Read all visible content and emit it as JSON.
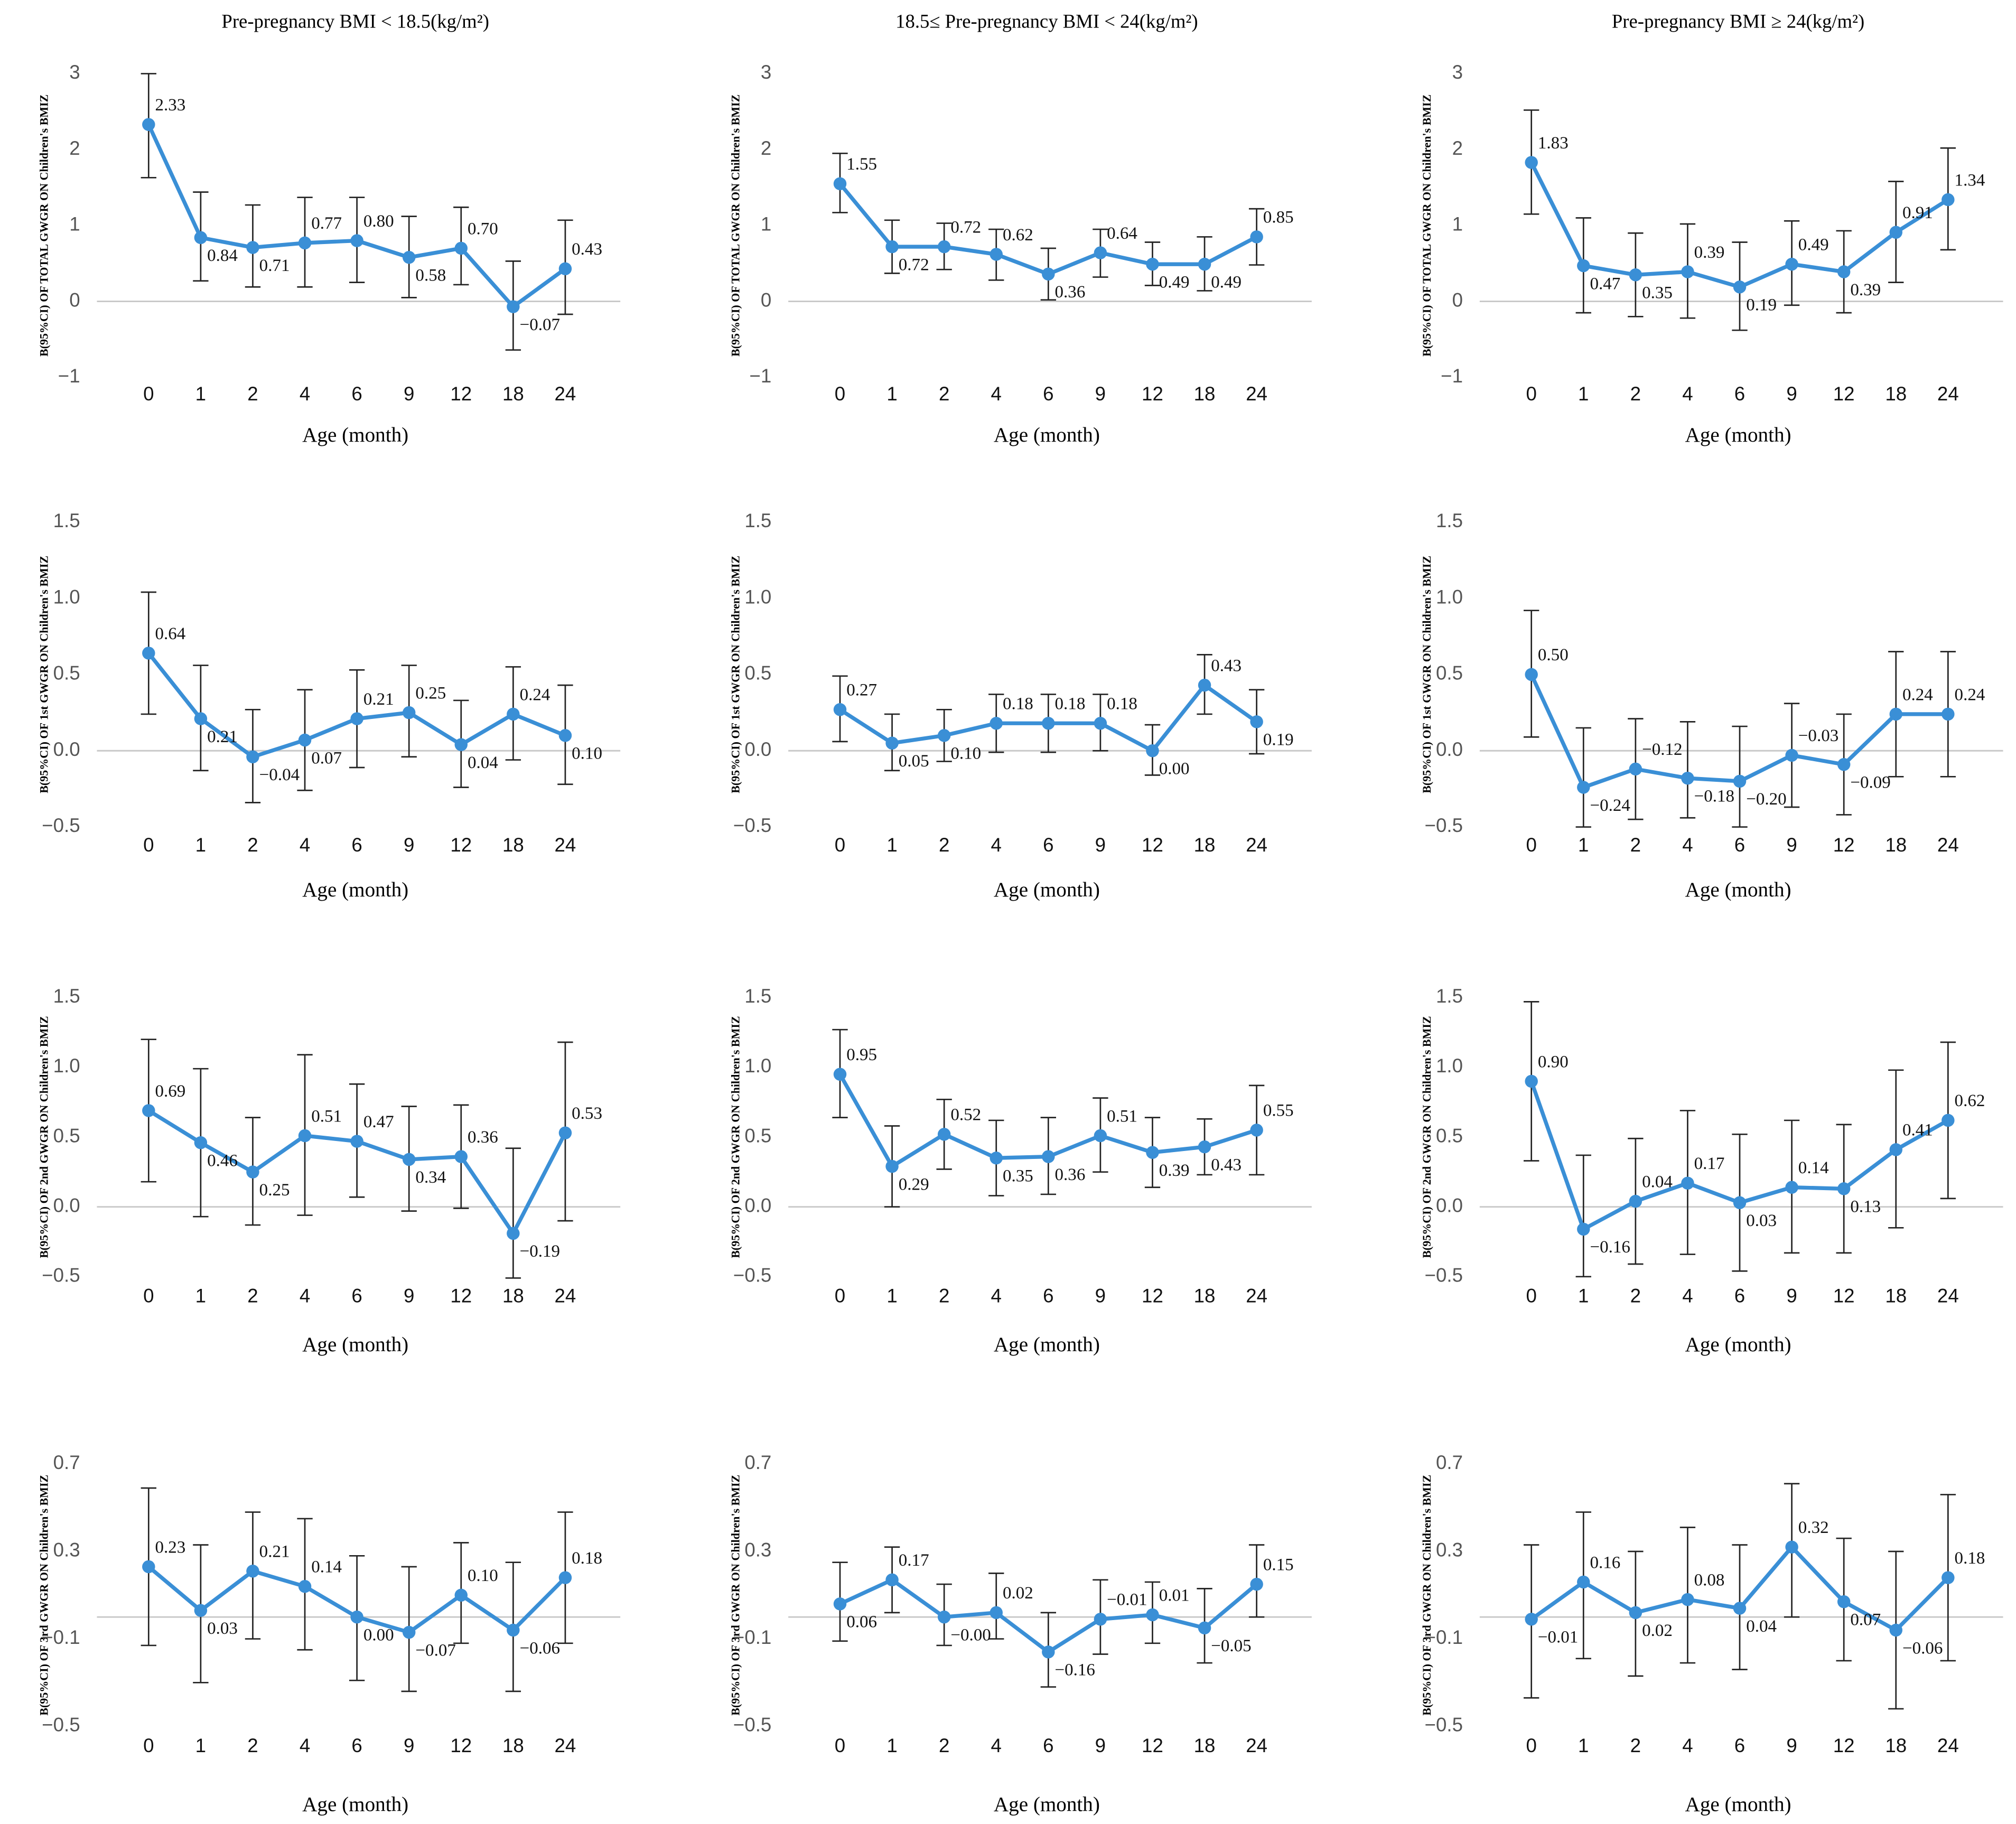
{
  "chart_data": [
    {
      "type": "line",
      "title": "Pre-pregnancy BMI < 18.5(kg/m²)",
      "ylabel": "B(95%CI) OF TOTAL GWGR ON Children's BMIZ",
      "xlabel": "Age (month)",
      "categories": [
        "0",
        "1",
        "2",
        "4",
        "6",
        "9",
        "12",
        "18",
        "24"
      ],
      "values": [
        2.33,
        0.84,
        0.71,
        0.77,
        0.8,
        0.58,
        0.7,
        -0.07,
        0.43
      ],
      "value_labels": [
        "2.33",
        "0.84",
        "0.71",
        "0.77",
        "0.80",
        "0.58",
        "0.70",
        "−0.07",
        "0.43"
      ],
      "ci_lower": [
        1.63,
        0.27,
        0.19,
        0.19,
        0.25,
        0.05,
        0.22,
        -0.64,
        -0.17
      ],
      "ci_upper": [
        3.0,
        1.44,
        1.27,
        1.37,
        1.37,
        1.12,
        1.24,
        0.53,
        1.07
      ],
      "color": "#3a8fd6",
      "ylim": [
        -1,
        3
      ],
      "yticks": [
        {
          "value": -1,
          "label": "−1"
        },
        0,
        1,
        2,
        3
      ]
    },
    {
      "type": "line",
      "title": "18.5≤ Pre-pregnancy BMI < 24(kg/m²)",
      "ylabel": "B(95%CI) OF TOTAL GWGR ON Children's BMIZ",
      "xlabel": "Age (month)",
      "categories": [
        "0",
        "1",
        "2",
        "4",
        "6",
        "9",
        "12",
        "18",
        "24"
      ],
      "values": [
        1.55,
        0.72,
        0.72,
        0.62,
        0.36,
        0.64,
        0.49,
        0.49,
        0.85
      ],
      "value_labels": [
        "1.55",
        "0.72",
        "0.72",
        "0.62",
        "0.36",
        "0.64",
        "0.49",
        "0.49",
        "0.85"
      ],
      "ci_lower": [
        1.17,
        0.37,
        0.42,
        0.28,
        0.02,
        0.32,
        0.21,
        0.14,
        0.48
      ],
      "ci_upper": [
        1.95,
        1.07,
        1.03,
        0.95,
        0.7,
        0.95,
        0.78,
        0.85,
        1.22
      ],
      "color": "#3a8fd6",
      "ylim": [
        -1,
        3
      ],
      "yticks": [
        {
          "value": -1,
          "label": "−1"
        },
        0,
        1,
        2,
        3
      ]
    },
    {
      "type": "line",
      "title": "Pre-pregnancy BMI ≥ 24(kg/m²)",
      "ylabel": "B(95%CI) OF TOTAL GWGR ON Children's BMIZ",
      "xlabel": "Age (month)",
      "categories": [
        "0",
        "1",
        "2",
        "4",
        "6",
        "9",
        "12",
        "18",
        "24"
      ],
      "values": [
        1.83,
        0.47,
        0.35,
        0.39,
        0.19,
        0.49,
        0.39,
        0.91,
        1.34
      ],
      "value_labels": [
        "1.83",
        "0.47",
        "0.35",
        "0.39",
        "0.19",
        "0.49",
        "0.39",
        "0.91",
        "1.34"
      ],
      "ci_lower": [
        1.15,
        -0.15,
        -0.2,
        -0.22,
        -0.38,
        -0.05,
        -0.15,
        0.25,
        0.68
      ],
      "ci_upper": [
        2.52,
        1.1,
        0.9,
        1.02,
        0.78,
        1.06,
        0.93,
        1.58,
        2.02
      ],
      "color": "#3a8fd6",
      "ylim": [
        -1,
        3
      ],
      "yticks": [
        {
          "value": -1,
          "label": "−1"
        },
        0,
        1,
        2,
        3
      ]
    },
    {
      "type": "line",
      "ylabel": "B(95%CI) OF 1st GWGR ON Children's BMIZ",
      "xlabel": "Age (month)",
      "categories": [
        "0",
        "1",
        "2",
        "4",
        "6",
        "9",
        "12",
        "18",
        "24"
      ],
      "values": [
        0.64,
        0.21,
        -0.04,
        0.07,
        0.21,
        0.25,
        0.04,
        0.24,
        0.1
      ],
      "value_labels": [
        "0.64",
        "0.21",
        "−0.04",
        "0.07",
        "0.21",
        "0.25",
        "0.04",
        "0.24",
        "0.10"
      ],
      "ci_lower": [
        0.24,
        -0.13,
        -0.34,
        -0.26,
        -0.11,
        -0.04,
        -0.24,
        -0.06,
        -0.22
      ],
      "ci_upper": [
        1.04,
        0.56,
        0.27,
        0.4,
        0.53,
        0.56,
        0.33,
        0.55,
        0.43
      ],
      "color": "#3a8fd6",
      "ylim": [
        -0.5,
        1.5
      ],
      "yticks": [
        {
          "value": -0.5,
          "label": "−0.5"
        },
        {
          "value": 0,
          "label": "0.0"
        },
        0.5,
        {
          "value": 1,
          "label": "1.0"
        },
        1.5
      ]
    },
    {
      "type": "line",
      "ylabel": "B(95%CI) OF 1st GWGR ON Children's BMIZ",
      "xlabel": "Age (month)",
      "categories": [
        "0",
        "1",
        "2",
        "4",
        "6",
        "9",
        "12",
        "18",
        "24"
      ],
      "values": [
        0.27,
        0.05,
        0.1,
        0.18,
        0.18,
        0.18,
        0.0,
        0.43,
        0.19
      ],
      "value_labels": [
        "0.27",
        "0.05",
        "0.10",
        "0.18",
        "0.18",
        "0.18",
        "0.00",
        "0.43",
        "0.19"
      ],
      "ci_lower": [
        0.06,
        -0.13,
        -0.07,
        -0.01,
        -0.01,
        0.0,
        -0.16,
        0.24,
        -0.02
      ],
      "ci_upper": [
        0.49,
        0.24,
        0.27,
        0.37,
        0.37,
        0.37,
        0.17,
        0.63,
        0.4
      ],
      "color": "#3a8fd6",
      "ylim": [
        -0.5,
        1.5
      ],
      "yticks": [
        {
          "value": -0.5,
          "label": "−0.5"
        },
        {
          "value": 0,
          "label": "0.0"
        },
        0.5,
        {
          "value": 1,
          "label": "1.0"
        },
        1.5
      ]
    },
    {
      "type": "line",
      "ylabel": "B(95%CI) OF 1st GWGR ON Children's BMIZ",
      "xlabel": "Age (month)",
      "categories": [
        "0",
        "1",
        "2",
        "4",
        "6",
        "9",
        "12",
        "18",
        "24"
      ],
      "values": [
        0.5,
        -0.24,
        -0.12,
        -0.18,
        -0.2,
        -0.03,
        -0.09,
        0.24,
        0.24
      ],
      "value_labels": [
        "0.50",
        "−0.24",
        "−0.12",
        "−0.18",
        "−0.20",
        "−0.03",
        "−0.09",
        "0.24",
        "0.24"
      ],
      "ci_lower": [
        0.09,
        -0.5,
        -0.45,
        -0.44,
        -0.5,
        -0.37,
        -0.42,
        -0.17,
        -0.17
      ],
      "ci_upper": [
        0.92,
        0.15,
        0.21,
        0.19,
        0.16,
        0.31,
        0.24,
        0.65,
        0.65
      ],
      "color": "#3a8fd6",
      "ylim": [
        -0.5,
        1.5
      ],
      "yticks": [
        {
          "value": -0.5,
          "label": "−0.5"
        },
        {
          "value": 0,
          "label": "0.0"
        },
        0.5,
        {
          "value": 1,
          "label": "1.0"
        },
        1.5
      ]
    },
    {
      "type": "line",
      "ylabel": "B(95%CI) OF 2nd GWGR ON Children's BMIZ",
      "xlabel": "Age (month)",
      "categories": [
        "0",
        "1",
        "2",
        "4",
        "6",
        "9",
        "12",
        "18",
        "24"
      ],
      "values": [
        0.69,
        0.46,
        0.25,
        0.51,
        0.47,
        0.34,
        0.36,
        -0.19,
        0.53
      ],
      "value_labels": [
        "0.69",
        "0.46",
        "0.25",
        "0.51",
        "0.47",
        "0.34",
        "0.36",
        "−0.19",
        "0.53"
      ],
      "ci_lower": [
        0.18,
        -0.07,
        -0.13,
        -0.06,
        0.07,
        -0.03,
        -0.01,
        -0.51,
        -0.1
      ],
      "ci_upper": [
        1.2,
        0.99,
        0.64,
        1.09,
        0.88,
        0.72,
        0.73,
        0.42,
        1.18
      ],
      "color": "#3a8fd6",
      "ylim": [
        -0.5,
        1.5
      ],
      "yticks": [
        {
          "value": -0.5,
          "label": "−0.5"
        },
        {
          "value": 0,
          "label": "0.0"
        },
        0.5,
        {
          "value": 1,
          "label": "1.0"
        },
        1.5
      ]
    },
    {
      "type": "line",
      "ylabel": "B(95%CI) OF 2nd GWGR ON Children's BMIZ",
      "xlabel": "Age (month)",
      "categories": [
        "0",
        "1",
        "2",
        "4",
        "6",
        "9",
        "12",
        "18",
        "24"
      ],
      "values": [
        0.95,
        0.29,
        0.52,
        0.35,
        0.36,
        0.51,
        0.39,
        0.43,
        0.55
      ],
      "value_labels": [
        "0.95",
        "0.29",
        "0.52",
        "0.35",
        "0.36",
        "0.51",
        "0.39",
        "0.43",
        "0.55"
      ],
      "ci_lower": [
        0.64,
        0.0,
        0.27,
        0.08,
        0.09,
        0.25,
        0.14,
        0.23,
        0.23
      ],
      "ci_upper": [
        1.27,
        0.58,
        0.77,
        0.62,
        0.64,
        0.78,
        0.64,
        0.63,
        0.87
      ],
      "color": "#3a8fd6",
      "ylim": [
        -0.5,
        1.5
      ],
      "yticks": [
        {
          "value": -0.5,
          "label": "−0.5"
        },
        {
          "value": 0,
          "label": "0.0"
        },
        0.5,
        {
          "value": 1,
          "label": "1.0"
        },
        1.5
      ]
    },
    {
      "type": "line",
      "ylabel": "B(95%CI) OF 2nd GWGR ON Children's BMIZ",
      "xlabel": "Age (month)",
      "categories": [
        "0",
        "1",
        "2",
        "4",
        "6",
        "9",
        "12",
        "18",
        "24"
      ],
      "values": [
        0.9,
        -0.16,
        0.04,
        0.17,
        0.03,
        0.14,
        0.13,
        0.41,
        0.62
      ],
      "value_labels": [
        "0.90",
        "−0.16",
        "0.04",
        "0.17",
        "0.03",
        "0.14",
        "0.13",
        "0.41",
        "0.62"
      ],
      "ci_lower": [
        0.33,
        -0.5,
        -0.41,
        -0.34,
        -0.46,
        -0.33,
        -0.33,
        -0.15,
        0.06
      ],
      "ci_upper": [
        1.47,
        0.37,
        0.49,
        0.69,
        0.52,
        0.62,
        0.59,
        0.98,
        1.18
      ],
      "color": "#3a8fd6",
      "ylim": [
        -0.5,
        1.5
      ],
      "yticks": [
        {
          "value": -0.5,
          "label": "−0.5"
        },
        {
          "value": 0,
          "label": "0.0"
        },
        0.5,
        {
          "value": 1,
          "label": "1.0"
        },
        1.5
      ]
    },
    {
      "type": "line",
      "ylabel": "B(95%CI) OF 3rd GWGR ON Children's BMIZ",
      "xlabel": "Age (month)",
      "categories": [
        "0",
        "1",
        "2",
        "4",
        "6",
        "9",
        "12",
        "18",
        "24"
      ],
      "values": [
        0.23,
        0.03,
        0.21,
        0.14,
        0.0,
        -0.07,
        0.1,
        -0.06,
        0.18
      ],
      "value_labels": [
        "0.23",
        "0.03",
        "0.21",
        "0.14",
        "0.00",
        "−0.07",
        "0.10",
        "−0.06",
        "0.18"
      ],
      "ci_lower": [
        -0.13,
        -0.3,
        -0.1,
        -0.15,
        -0.29,
        -0.34,
        -0.12,
        -0.34,
        -0.12
      ],
      "ci_upper": [
        0.59,
        0.33,
        0.48,
        0.45,
        0.28,
        0.23,
        0.34,
        0.25,
        0.48
      ],
      "color": "#3a8fd6",
      "ylim": [
        -0.5,
        0.7
      ],
      "yticks": [
        {
          "value": -0.5,
          "label": "−0.5"
        },
        {
          "value": -0.1,
          "label": "−0.1"
        },
        0.3,
        0.7
      ]
    },
    {
      "type": "line",
      "ylabel": "B(95%CI) OF 3rd GWGR ON Children's BMIZ",
      "xlabel": "Age (month)",
      "categories": [
        "0",
        "1",
        "2",
        "4",
        "6",
        "9",
        "12",
        "18",
        "24"
      ],
      "values": [
        0.06,
        0.17,
        0,
        0.02,
        -0.16,
        -0.01,
        0.01,
        -0.05,
        0.15
      ],
      "value_labels": [
        "0.06",
        "0.17",
        "−0.00",
        "0.02",
        "−0.16",
        "−0.01",
        "0.01",
        "−0.05",
        "0.15"
      ],
      "ci_lower": [
        -0.11,
        0.02,
        -0.13,
        -0.1,
        -0.32,
        -0.17,
        -0.12,
        -0.21,
        0.0
      ],
      "ci_upper": [
        0.25,
        0.32,
        0.15,
        0.2,
        0.02,
        0.17,
        0.16,
        0.13,
        0.33
      ],
      "color": "#3a8fd6",
      "ylim": [
        -0.5,
        0.7
      ],
      "yticks": [
        {
          "value": -0.5,
          "label": "−0.5"
        },
        {
          "value": -0.1,
          "label": "−0.1"
        },
        0.3,
        0.7
      ]
    },
    {
      "type": "line",
      "ylabel": "B(95%CI) OF 3rd GWGR ON Children's BMIZ",
      "xlabel": "Age (month)",
      "categories": [
        "0",
        "1",
        "2",
        "4",
        "6",
        "9",
        "12",
        "18",
        "24"
      ],
      "values": [
        -0.01,
        0.16,
        0.02,
        0.08,
        0.04,
        0.32,
        0.07,
        -0.06,
        0.18
      ],
      "value_labels": [
        "−0.01",
        "0.16",
        "0.02",
        "0.08",
        "0.04",
        "0.32",
        "0.07",
        "−0.06",
        "0.18"
      ],
      "ci_lower": [
        -0.37,
        -0.19,
        -0.27,
        -0.21,
        -0.24,
        0.0,
        -0.2,
        -0.42,
        -0.2
      ],
      "ci_upper": [
        0.33,
        0.48,
        0.3,
        0.41,
        0.33,
        0.61,
        0.36,
        0.3,
        0.56
      ],
      "color": "#3a8fd6",
      "ylim": [
        -0.5,
        0.7
      ],
      "yticks": [
        {
          "value": -0.5,
          "label": "−0.5"
        },
        {
          "value": -0.1,
          "label": "−0.1"
        },
        0.3,
        0.7
      ]
    }
  ]
}
